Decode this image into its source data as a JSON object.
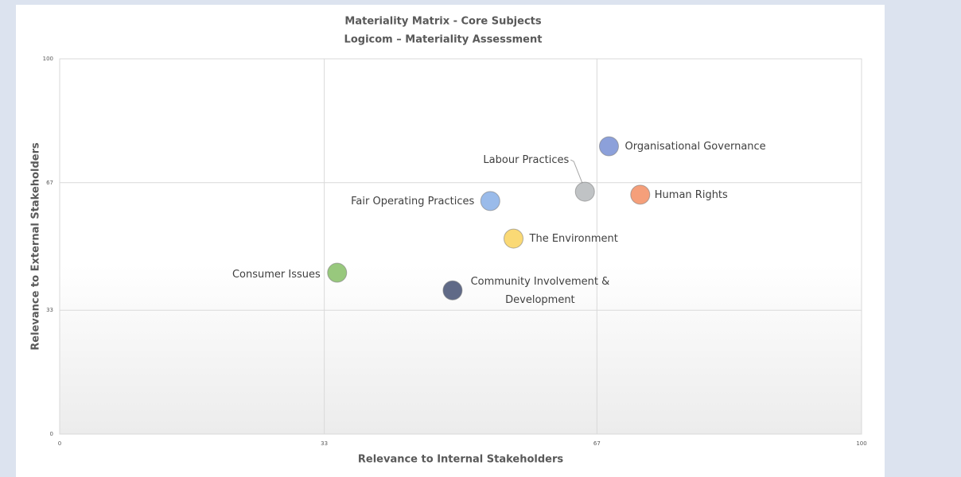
{
  "chart_data": {
    "type": "scatter",
    "title": "Materiality Matrix - Core Subjects",
    "subtitle": "Logicom – Materiality Assessment",
    "x_label": "Relevance to Internal Stakeholders",
    "y_label": "Relevance to External Stakeholders",
    "xlim": [
      0,
      100
    ],
    "ylim": [
      0,
      100
    ],
    "xticks": [
      0,
      33,
      67,
      100
    ],
    "yticks": [
      0,
      33,
      67,
      100
    ],
    "grid": true,
    "series": [
      {
        "name": "Organisational Governance",
        "color": "#7f96d6",
        "x": [
          68.5
        ],
        "values": [
          76.7
        ]
      },
      {
        "name": "Labour Practices",
        "color": "#b9bcbf",
        "x": [
          65.5
        ],
        "values": [
          64.6
        ]
      },
      {
        "name": "Human Rights",
        "color": "#f4956b",
        "x": [
          72.4
        ],
        "values": [
          63.8
        ]
      },
      {
        "name": "Fair Operating Practices",
        "color": "#8fb4e8",
        "x": [
          53.7
        ],
        "values": [
          62.1
        ]
      },
      {
        "name": "The Environment",
        "color": "#f9d566",
        "x": [
          56.6
        ],
        "values": [
          52.1
        ]
      },
      {
        "name": "Consumer Issues",
        "color": "#8dc26f",
        "x": [
          34.6
        ],
        "values": [
          43.0
        ]
      },
      {
        "name": "Community Involvement & Development",
        "color": "#4f5a7a",
        "x": [
          49.0
        ],
        "values": [
          38.3
        ]
      }
    ]
  }
}
